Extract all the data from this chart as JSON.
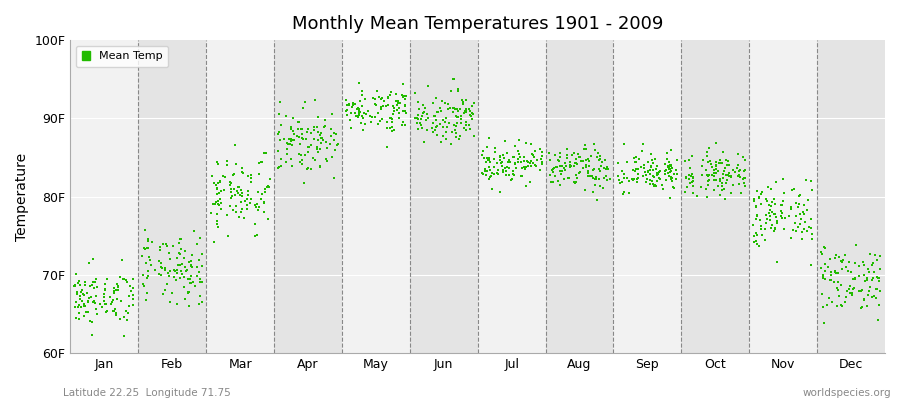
{
  "title": "Monthly Mean Temperatures 1901 - 2009",
  "ylabel": "Temperature",
  "xlabel_months": [
    "Jan",
    "Feb",
    "Mar",
    "Apr",
    "May",
    "Jun",
    "Jul",
    "Aug",
    "Sep",
    "Oct",
    "Nov",
    "Dec"
  ],
  "ylim": [
    60,
    100
  ],
  "yticks": [
    60,
    70,
    80,
    90,
    100
  ],
  "ytick_labels": [
    "60F",
    "70F",
    "80F",
    "90F",
    "100F"
  ],
  "marker_color": "#22BB00",
  "background_color": "#EBEBEB",
  "band_color_light": "#F2F2F2",
  "band_color_dark": "#E4E4E4",
  "legend_label": "Mean Temp",
  "subtitle_left": "Latitude 22.25  Longitude 71.75",
  "subtitle_right": "worldspecies.org",
  "years": 109,
  "monthly_means": [
    67.0,
    70.5,
    80.5,
    87.0,
    91.2,
    90.3,
    84.3,
    83.5,
    83.0,
    83.0,
    77.5,
    69.5
  ],
  "monthly_stds": [
    1.8,
    2.2,
    2.5,
    2.0,
    1.4,
    1.6,
    1.3,
    1.4,
    1.4,
    1.4,
    2.2,
    2.2
  ],
  "seed": 42
}
